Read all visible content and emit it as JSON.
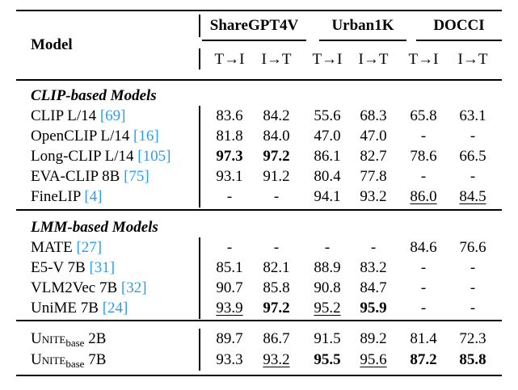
{
  "header": {
    "model": "Model",
    "groups": [
      "ShareGPT4V",
      "Urban1K",
      "DOCCI"
    ],
    "subcols": [
      "T→I",
      "I→T",
      "T→I",
      "I→T",
      "T→I",
      "I→T"
    ]
  },
  "sections": [
    {
      "title": "CLIP-based Models",
      "rows": [
        {
          "name": "CLIP L/14 ",
          "cite": "[69]",
          "values": [
            "83.6",
            "84.2",
            "55.6",
            "68.3",
            "65.8",
            "63.1"
          ],
          "bold": [],
          "underline": []
        },
        {
          "name": "OpenCLIP L/14 ",
          "cite": "[16]",
          "values": [
            "81.8",
            "84.0",
            "47.0",
            "47.0",
            "-",
            "-"
          ],
          "bold": [],
          "underline": []
        },
        {
          "name": "Long-CLIP L/14 ",
          "cite": "[105]",
          "values": [
            "97.3",
            "97.2",
            "86.1",
            "82.7",
            "78.6",
            "66.5"
          ],
          "bold": [
            0,
            1
          ],
          "underline": []
        },
        {
          "name": "EVA-CLIP 8B ",
          "cite": "[75]",
          "values": [
            "93.1",
            "91.2",
            "80.4",
            "77.8",
            "-",
            "-"
          ],
          "bold": [],
          "underline": []
        },
        {
          "name": "FineLIP ",
          "cite": "[4]",
          "values": [
            "-",
            "-",
            "94.1",
            "93.2",
            "86.0",
            "84.5"
          ],
          "bold": [],
          "underline": [
            4,
            5
          ]
        }
      ]
    },
    {
      "title": "LMM-based Models",
      "rows": [
        {
          "name": "MATE ",
          "cite": "[27]",
          "values": [
            "-",
            "-",
            "-",
            "-",
            "84.6",
            "76.6"
          ],
          "bold": [],
          "underline": []
        },
        {
          "name": "E5-V 7B ",
          "cite": "[31]",
          "values": [
            "85.1",
            "82.1",
            "88.9",
            "83.2",
            "-",
            "-"
          ],
          "bold": [],
          "underline": []
        },
        {
          "name": "VLM2Vec 7B ",
          "cite": "[32]",
          "values": [
            "90.7",
            "85.8",
            "90.8",
            "84.7",
            "-",
            "-"
          ],
          "bold": [],
          "underline": []
        },
        {
          "name": "UniME 7B ",
          "cite": "[24]",
          "values": [
            "93.9",
            "97.2",
            "95.2",
            "95.9",
            "-",
            "-"
          ],
          "bold": [
            1,
            3
          ],
          "underline": [
            0,
            2
          ]
        }
      ]
    }
  ],
  "unite_rows": [
    {
      "name": "Unite",
      "sub": "base",
      "size": " 2B",
      "values": [
        "89.7",
        "86.7",
        "91.5",
        "89.2",
        "81.4",
        "72.3"
      ],
      "bold": [],
      "underline": []
    },
    {
      "name": "Unite",
      "sub": "base",
      "size": " 7B",
      "values": [
        "93.3",
        "93.2",
        "95.5",
        "95.6",
        "87.2",
        "85.8"
      ],
      "bold": [
        2,
        4,
        5
      ],
      "underline": [
        1,
        3
      ]
    }
  ]
}
